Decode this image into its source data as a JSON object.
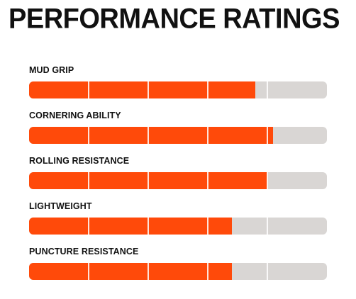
{
  "title": "PERFORMANCE RATINGS",
  "colors": {
    "fill": "#ff4a0a",
    "track": "#d9d6d4"
  },
  "chart_data": {
    "type": "bar",
    "orientation": "horizontal",
    "scale_max": 5,
    "segments": 5,
    "categories": [
      "MUD GRIP",
      "CORNERING ABILITY",
      "ROLLING RESISTANCE",
      "LIGHTWEIGHT",
      "PUNCTURE RESISTANCE"
    ],
    "values": [
      3.8,
      4.1,
      4.0,
      3.4,
      3.4
    ]
  }
}
